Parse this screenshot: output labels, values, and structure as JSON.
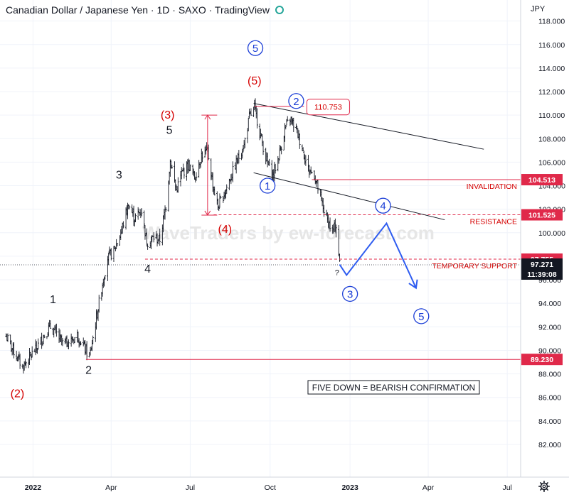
{
  "header": {
    "title": "Canadian Dollar / Japanese Yen · 1D · SAXO · TradingView",
    "currency": "JPY",
    "status_icon": "live-status-icon"
  },
  "colors": {
    "grid": "#f0f3fa",
    "axis_border": "#d1d4dc",
    "axis_text": "#131722",
    "candle": "#131722",
    "red": "#e0294a",
    "label_red": "#d50000",
    "wave_blue": "#1a3dd6",
    "projection_blue": "#2e5cf0",
    "trendline": "#131722",
    "price_tag_bg": "#131722",
    "watermark": "#e6e6e6",
    "status_green": "#26a69a"
  },
  "chart_data": {
    "type": "candlestick",
    "symbol": "CADJPY",
    "timeframe": "1D",
    "ylim": [
      80.8,
      120.0
    ],
    "y_ticks": [
      {
        "v": 118,
        "t": "118.000"
      },
      {
        "v": 116,
        "t": "116.000"
      },
      {
        "v": 114,
        "t": "114.000"
      },
      {
        "v": 112,
        "t": "112.000"
      },
      {
        "v": 110,
        "t": "110.000"
      },
      {
        "v": 108,
        "t": "108.000"
      },
      {
        "v": 106,
        "t": "106.000"
      },
      {
        "v": 104,
        "t": "104.000"
      },
      {
        "v": 102,
        "t": "102.000"
      },
      {
        "v": 100,
        "t": "100.000"
      },
      {
        "v": 98,
        "t": "98.000"
      },
      {
        "v": 96,
        "t": "96.000"
      },
      {
        "v": 94,
        "t": "94.000"
      },
      {
        "v": 92,
        "t": "92.000"
      },
      {
        "v": 90,
        "t": "90.000"
      },
      {
        "v": 88,
        "t": "88.000"
      },
      {
        "v": 86,
        "t": "86.000"
      },
      {
        "v": 84,
        "t": "84.000"
      },
      {
        "v": 82,
        "t": "82.000"
      }
    ],
    "x_ticks": [
      {
        "d": "2022-01-01",
        "t": "2022",
        "bold": true
      },
      {
        "d": "2022-04-01",
        "t": "Apr"
      },
      {
        "d": "2022-07-01",
        "t": "Jul"
      },
      {
        "d": "2022-10-01",
        "t": "Oct"
      },
      {
        "d": "2023-01-01",
        "t": "2023",
        "bold": true
      },
      {
        "d": "2023-04-01",
        "t": "Apr"
      },
      {
        "d": "2023-07-01",
        "t": "Jul"
      }
    ],
    "price_path": [
      [
        "2021-12-01",
        91.2
      ],
      [
        "2021-12-10",
        89.9
      ],
      [
        "2021-12-20",
        88.6
      ],
      [
        "2021-12-28",
        89.4
      ],
      [
        "2022-01-05",
        90.2
      ],
      [
        "2022-01-14",
        91.3
      ],
      [
        "2022-01-21",
        92.0
      ],
      [
        "2022-01-28",
        91.4
      ],
      [
        "2022-02-04",
        90.6
      ],
      [
        "2022-02-14",
        90.8
      ],
      [
        "2022-02-21",
        91.3
      ],
      [
        "2022-02-28",
        90.4
      ],
      [
        "2022-03-07",
        89.4
      ],
      [
        "2022-03-14",
        92.3
      ],
      [
        "2022-03-21",
        95.3
      ],
      [
        "2022-03-28",
        97.9
      ],
      [
        "2022-04-04",
        98.4
      ],
      [
        "2022-04-12",
        100.0
      ],
      [
        "2022-04-21",
        102.4
      ],
      [
        "2022-04-28",
        101.2
      ],
      [
        "2022-05-06",
        101.9
      ],
      [
        "2022-05-12",
        99.2
      ],
      [
        "2022-05-20",
        99.6
      ],
      [
        "2022-05-27",
        99.4
      ],
      [
        "2022-06-03",
        102.3
      ],
      [
        "2022-06-08",
        106.2
      ],
      [
        "2022-06-15",
        103.6
      ],
      [
        "2022-06-21",
        105.0
      ],
      [
        "2022-06-29",
        105.8
      ],
      [
        "2022-07-06",
        104.7
      ],
      [
        "2022-07-14",
        106.6
      ],
      [
        "2022-07-21",
        106.9
      ],
      [
        "2022-07-28",
        103.7
      ],
      [
        "2022-08-02",
        102.2
      ],
      [
        "2022-08-10",
        103.5
      ],
      [
        "2022-08-18",
        105.0
      ],
      [
        "2022-08-25",
        106.3
      ],
      [
        "2022-09-01",
        107.5
      ],
      [
        "2022-09-07",
        109.8
      ],
      [
        "2022-09-13",
        110.6
      ],
      [
        "2022-09-19",
        108.6
      ],
      [
        "2022-09-27",
        106.1
      ],
      [
        "2022-10-04",
        104.8
      ],
      [
        "2022-10-11",
        106.5
      ],
      [
        "2022-10-18",
        108.8
      ],
      [
        "2022-10-24",
        109.7
      ],
      [
        "2022-10-31",
        108.8
      ],
      [
        "2022-11-07",
        107.2
      ],
      [
        "2022-11-14",
        105.4
      ],
      [
        "2022-11-21",
        104.9
      ],
      [
        "2022-11-28",
        102.9
      ],
      [
        "2022-12-05",
        101.2
      ],
      [
        "2022-12-12",
        100.1
      ],
      [
        "2022-12-16",
        100.6
      ],
      [
        "2022-12-20",
        97.4
      ]
    ],
    "last_price": 97.271,
    "countdown": "11:39:08",
    "projection": [
      [
        "2022-12-20",
        97.3
      ],
      [
        "2022-12-28",
        96.4
      ],
      [
        "2023-02-12",
        100.8
      ],
      [
        "2023-03-18",
        95.3
      ]
    ],
    "levels": [
      {
        "name": "invalidation",
        "value": 104.513,
        "label": "INVALIDATION",
        "tag": "104.513",
        "style": "solid",
        "from": "2022-11-18"
      },
      {
        "name": "resistance",
        "value": 101.525,
        "label": "RESISTANCE",
        "tag": "101.525",
        "style": "dashed",
        "from": "2022-07-28"
      },
      {
        "name": "temporary-support",
        "value": 97.755,
        "label": "TEMPORARY SUPPORT",
        "tag": "97.755",
        "style": "dashed",
        "from": "2022-05-10"
      },
      {
        "name": "support",
        "value": 89.23,
        "label": "",
        "tag": "89.230",
        "style": "solid",
        "from": "2022-03-03"
      }
    ],
    "high_marker": {
      "value": "110.753",
      "line_from": [
        "2022-09-13",
        110.75
      ],
      "line_to": [
        "2022-11-09",
        110.75
      ]
    },
    "channel_lines": [
      {
        "from": [
          "2022-09-12",
          111.0
        ],
        "to": [
          "2023-06-04",
          107.1
        ]
      },
      {
        "from": [
          "2022-09-12",
          105.1
        ],
        "to": [
          "2023-04-20",
          101.1
        ]
      }
    ],
    "measure": {
      "date": "2022-07-21",
      "low": 101.5,
      "high": 110.0,
      "right": "2022-08-01",
      "left": "2022-07-14"
    },
    "black_labels": [
      {
        "t": "1",
        "d": "2022-01-24",
        "v": 94.0
      },
      {
        "t": "2",
        "d": "2022-03-06",
        "v": 88.0
      },
      {
        "t": "3",
        "d": "2022-04-10",
        "v": 104.6
      },
      {
        "t": "4",
        "d": "2022-05-13",
        "v": 96.6
      },
      {
        "t": "5",
        "d": "2022-06-07",
        "v": 108.4
      }
    ],
    "red_labels": [
      {
        "t": "(2)",
        "d": "2021-12-14",
        "v": 86.0
      },
      {
        "t": "(3)",
        "d": "2022-06-05",
        "v": 109.7
      },
      {
        "t": "(4)",
        "d": "2022-08-10",
        "v": 100.0
      },
      {
        "t": "(5)",
        "d": "2022-09-13",
        "v": 112.6
      }
    ],
    "blue_circles": [
      {
        "t": "5",
        "d": "2022-09-14",
        "v": 115.7
      },
      {
        "t": "2",
        "d": "2022-10-31",
        "v": 111.2
      },
      {
        "t": "1",
        "d": "2022-09-28",
        "v": 104.0
      },
      {
        "t": "4",
        "d": "2023-02-08",
        "v": 102.3
      },
      {
        "t": "3",
        "d": "2023-01-01",
        "v": 94.8
      },
      {
        "t": "5",
        "d": "2023-03-24",
        "v": 92.9
      }
    ],
    "question_mark": {
      "t": "?",
      "d": "2022-12-17",
      "v": 96.4
    },
    "annotation_box": "FIVE DOWN = BEARISH CONFIRMATION",
    "watermark": "WaveTraders by ew-forecast.com"
  }
}
